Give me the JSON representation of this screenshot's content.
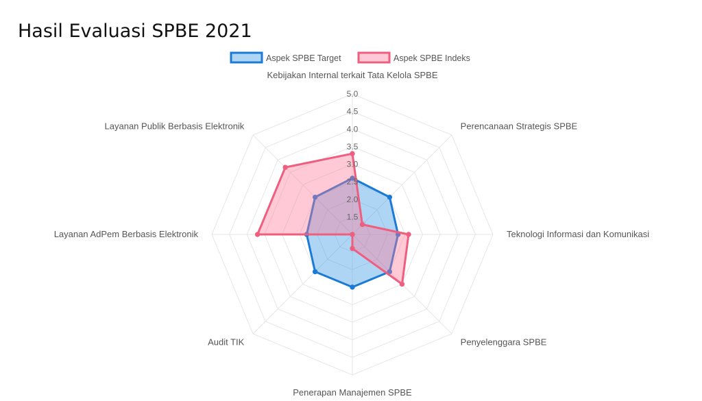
{
  "page": {
    "title": "Hasil Evaluasi SPBE 2021"
  },
  "chart_data": {
    "type": "radar",
    "categories": [
      "Kebijakan Internal terkait Tata Kelola SPBE",
      "Perencanaan Strategis SPBE",
      "Teknologi Informasi dan Komunikasi",
      "Penyelenggara SPBE",
      "Penerapan Manajemen SPBE",
      "Audit TIK",
      "Layanan AdPem Berbasis Elektronik",
      "Layanan Publik Berbasis Elektronik"
    ],
    "series": [
      {
        "name": "Aspek SPBE Target",
        "values": [
          2.6,
          2.5,
          2.3,
          2.5,
          2.5,
          2.5,
          2.3,
          2.5
        ],
        "stroke": "#1a7ad6",
        "fill": "rgba(54,150,230,0.40)"
      },
      {
        "name": "Aspek SPBE Indeks",
        "values": [
          3.3,
          1.4,
          2.6,
          3.0,
          1.4,
          1.0,
          3.7,
          3.7
        ],
        "stroke": "#ee5e7e",
        "fill": "rgba(255,120,150,0.40)"
      }
    ],
    "r_ticks": [
      "1.5",
      "2.0",
      "2.5",
      "3.0",
      "3.5",
      "4.0",
      "4.5",
      "5.0"
    ],
    "r_min": 1.0,
    "r_max": 5.0,
    "legend_position": "top",
    "grid": true
  }
}
